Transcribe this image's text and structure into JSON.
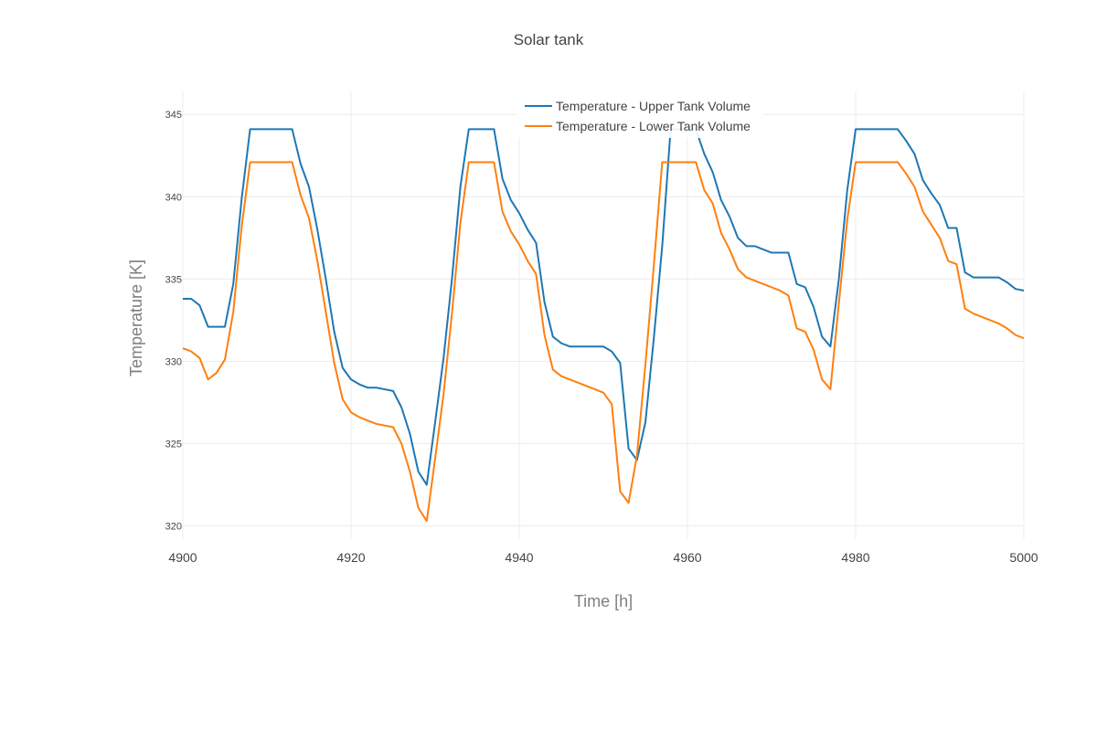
{
  "chart_data": {
    "type": "line",
    "title": "Solar tank",
    "xlabel": "Time [h]",
    "ylabel": "Temperature [K]",
    "xlim": [
      4900,
      5000
    ],
    "ylim": [
      319.2,
      346.4
    ],
    "xticks": [
      4900,
      4920,
      4940,
      4960,
      4980,
      5000
    ],
    "yticks": [
      320,
      325,
      330,
      335,
      340,
      345
    ],
    "grid": true,
    "legend_position": "top-center",
    "series": [
      {
        "name": "Temperature - Upper Tank Volume",
        "color": "#1f77b4",
        "x": [
          4900,
          4901,
          4902,
          4903,
          4904,
          4905,
          4906,
          4907,
          4908,
          4909,
          4910,
          4911,
          4912,
          4913,
          4914,
          4915,
          4916,
          4917,
          4918,
          4919,
          4920,
          4921,
          4922,
          4923,
          4924,
          4925,
          4926,
          4927,
          4928,
          4929,
          4930,
          4931,
          4932,
          4933,
          4934,
          4935,
          4936,
          4937,
          4938,
          4939,
          4940,
          4941,
          4942,
          4943,
          4944,
          4945,
          4946,
          4947,
          4948,
          4949,
          4950,
          4951,
          4952,
          4953,
          4954,
          4955,
          4956,
          4957,
          4958,
          4959,
          4960,
          4961,
          4962,
          4963,
          4964,
          4965,
          4966,
          4967,
          4968,
          4969,
          4970,
          4971,
          4972,
          4973,
          4974,
          4975,
          4976,
          4977,
          4978,
          4979,
          4980,
          4981,
          4982,
          4983,
          4984,
          4985,
          4986,
          4987,
          4988,
          4989,
          4990,
          4991,
          4992,
          4993,
          4994,
          4995,
          4996,
          4997,
          4998,
          4999,
          5000
        ],
        "y": [
          333.8,
          333.8,
          333.4,
          332.1,
          332.1,
          332.1,
          334.7,
          339.9,
          344.1,
          344.1,
          344.1,
          344.1,
          344.1,
          344.1,
          342.0,
          340.6,
          338.0,
          335.0,
          331.8,
          329.6,
          328.9,
          328.6,
          328.4,
          328.4,
          328.3,
          328.2,
          327.2,
          325.6,
          323.3,
          322.5,
          326.3,
          330.2,
          335.0,
          340.6,
          344.1,
          344.1,
          344.1,
          344.1,
          341.1,
          339.8,
          339.0,
          338.0,
          337.2,
          333.6,
          331.5,
          331.1,
          330.9,
          330.9,
          330.9,
          330.9,
          330.9,
          330.6,
          329.9,
          324.7,
          324.0,
          326.3,
          331.4,
          337.0,
          344.1,
          344.1,
          344.1,
          344.1,
          342.6,
          341.5,
          339.8,
          338.8,
          337.5,
          337.0,
          337.0,
          336.8,
          336.6,
          336.6,
          336.6,
          334.7,
          334.5,
          333.3,
          331.5,
          330.9,
          335.0,
          340.4,
          344.1,
          344.1,
          344.1,
          344.1,
          344.1,
          344.1,
          343.4,
          342.6,
          341.0,
          340.2,
          339.5,
          338.1,
          338.1,
          335.4,
          335.1,
          335.1,
          335.1,
          335.1,
          334.8,
          334.4,
          334.3
        ]
      },
      {
        "name": "Temperature - Lower Tank Volume",
        "color": "#ff7f0e",
        "x": [
          4900,
          4901,
          4902,
          4903,
          4904,
          4905,
          4906,
          4907,
          4908,
          4909,
          4910,
          4911,
          4912,
          4913,
          4914,
          4915,
          4916,
          4917,
          4918,
          4919,
          4920,
          4921,
          4922,
          4923,
          4924,
          4925,
          4926,
          4927,
          4928,
          4929,
          4930,
          4931,
          4932,
          4933,
          4934,
          4935,
          4936,
          4937,
          4938,
          4939,
          4940,
          4941,
          4942,
          4943,
          4944,
          4945,
          4946,
          4947,
          4948,
          4949,
          4950,
          4951,
          4952,
          4953,
          4954,
          4955,
          4956,
          4957,
          4958,
          4959,
          4960,
          4961,
          4962,
          4963,
          4964,
          4965,
          4966,
          4967,
          4968,
          4969,
          4970,
          4971,
          4972,
          4973,
          4974,
          4975,
          4976,
          4977,
          4978,
          4979,
          4980,
          4981,
          4982,
          4983,
          4984,
          4985,
          4986,
          4987,
          4988,
          4989,
          4990,
          4991,
          4992,
          4993,
          4994,
          4995,
          4996,
          4997,
          4998,
          4999,
          5000
        ],
        "y": [
          330.8,
          330.6,
          330.2,
          328.9,
          329.3,
          330.1,
          333.0,
          338.2,
          342.1,
          342.1,
          342.1,
          342.1,
          342.1,
          342.1,
          340.1,
          338.7,
          336.1,
          333.0,
          329.9,
          327.7,
          326.9,
          326.6,
          326.4,
          326.2,
          326.1,
          326.0,
          325.0,
          323.3,
          321.1,
          320.3,
          324.1,
          328.0,
          332.9,
          338.4,
          342.1,
          342.1,
          342.1,
          342.1,
          339.1,
          337.9,
          337.1,
          336.1,
          335.3,
          331.6,
          329.5,
          329.1,
          328.9,
          328.7,
          328.5,
          328.3,
          328.1,
          327.4,
          322.1,
          321.4,
          324.3,
          329.8,
          335.8,
          342.1,
          342.1,
          342.1,
          342.1,
          342.1,
          340.4,
          339.6,
          337.8,
          336.8,
          335.6,
          335.1,
          334.9,
          334.7,
          334.5,
          334.3,
          334.0,
          332.0,
          331.8,
          330.7,
          328.9,
          328.3,
          333.5,
          338.6,
          342.1,
          342.1,
          342.1,
          342.1,
          342.1,
          342.1,
          341.4,
          340.6,
          339.1,
          338.3,
          337.5,
          336.1,
          335.9,
          333.2,
          332.9,
          332.7,
          332.5,
          332.3,
          332.0,
          331.6,
          331.4
        ]
      }
    ]
  }
}
